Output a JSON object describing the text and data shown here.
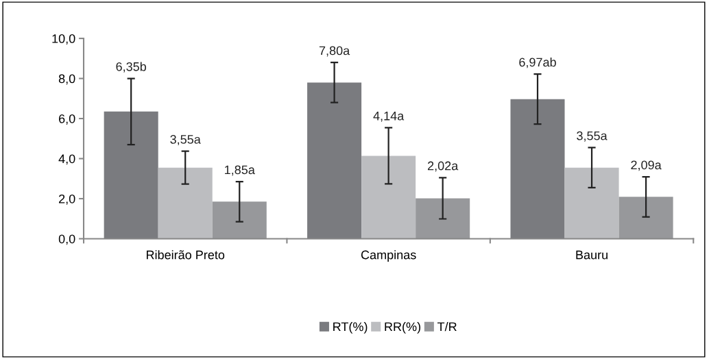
{
  "chart_data": {
    "type": "bar",
    "categories": [
      "Ribeirão Preto",
      "Campinas",
      "Bauru"
    ],
    "series": [
      {
        "name": "RT(%)",
        "color": "#7a7b7f",
        "values": [
          6.35,
          7.8,
          6.97
        ],
        "errors": [
          1.65,
          1.0,
          1.25
        ],
        "value_labels": [
          "6,35b",
          "7,80a",
          "6,97ab"
        ]
      },
      {
        "name": "RR(%)",
        "color": "#bcbdc0",
        "values": [
          3.55,
          4.14,
          3.55
        ],
        "errors": [
          0.82,
          1.4,
          1.0
        ],
        "value_labels": [
          "3,55a",
          "4,14a",
          "3,55a"
        ]
      },
      {
        "name": "T/R",
        "color": "#97989b",
        "values": [
          1.85,
          2.02,
          2.09
        ],
        "errors": [
          1.0,
          1.03,
          1.0
        ],
        "value_labels": [
          "1,85a",
          "2,02a",
          "2,09a"
        ]
      }
    ],
    "ylim": [
      0,
      10
    ],
    "yticks": [
      {
        "value": 0,
        "label": "0,0"
      },
      {
        "value": 2,
        "label": "2,0"
      },
      {
        "value": 4,
        "label": "4,0"
      },
      {
        "value": 6,
        "label": "6,0"
      },
      {
        "value": 8,
        "label": "8,0"
      },
      {
        "value": 10,
        "label": "10,0"
      }
    ],
    "grid": false,
    "legend": "bottom"
  }
}
